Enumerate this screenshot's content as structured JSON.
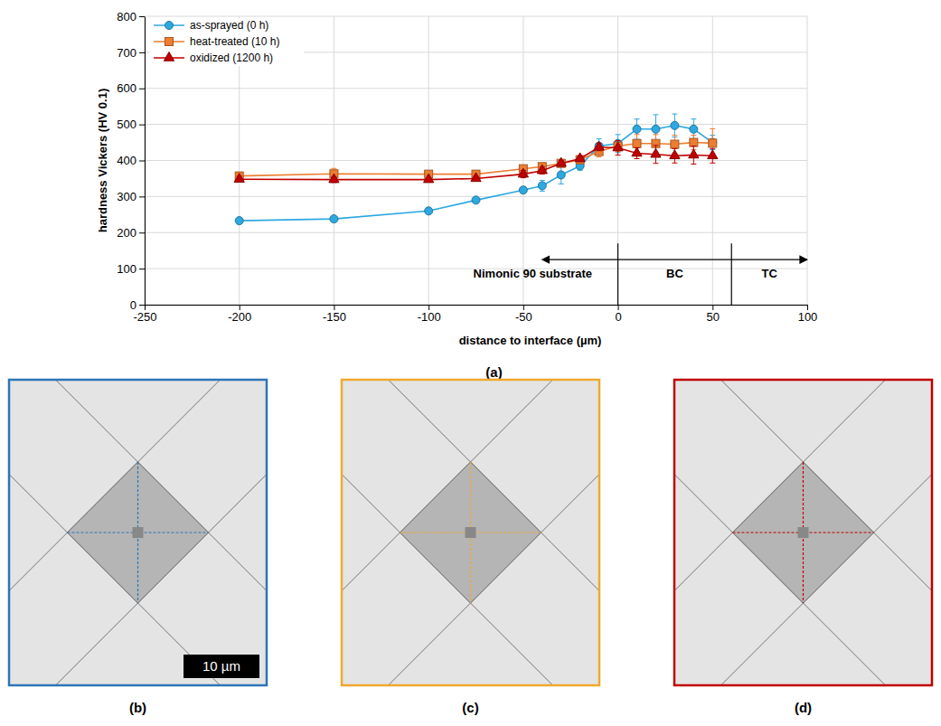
{
  "chart_data": {
    "type": "line",
    "title": "(a)",
    "x_label": "distance to interface (µm)",
    "y_label": "hardness Vickers (HV 0.1)",
    "x": [
      -200,
      -150,
      -100,
      -75,
      -50,
      -40,
      -30,
      -20,
      -10,
      0,
      10,
      20,
      30,
      40,
      50
    ],
    "series": [
      {
        "name": "as-sprayed (0 h)",
        "color": "#2ea8e0",
        "marker": "circle",
        "line_style": "solid",
        "values": [
          233,
          238,
          260,
          290,
          318,
          330,
          360,
          385,
          440,
          447,
          487,
          487,
          497,
          487,
          450
        ],
        "errors": [
          6,
          4,
          4,
          8,
          8,
          15,
          25,
          12,
          20,
          25,
          28,
          40,
          32,
          28,
          20
        ]
      },
      {
        "name": "heat-treated (10 h)",
        "color": "#ed7d31",
        "marker": "square",
        "line_style": "solid",
        "values": [
          357,
          363,
          362,
          362,
          377,
          383,
          392,
          402,
          425,
          440,
          447,
          447,
          445,
          450,
          448
        ],
        "errors": [
          10,
          15,
          8,
          8,
          8,
          8,
          8,
          8,
          15,
          15,
          25,
          25,
          25,
          20,
          40
        ]
      },
      {
        "name": "oxidized (1200 h)",
        "color": "#c00000",
        "marker": "triangle",
        "line_style": "solid",
        "values": [
          348,
          347,
          347,
          350,
          362,
          372,
          392,
          405,
          437,
          435,
          420,
          417,
          413,
          415,
          413
        ],
        "errors": [
          8,
          8,
          5,
          5,
          10,
          10,
          8,
          8,
          10,
          20,
          15,
          25,
          20,
          25,
          20
        ]
      }
    ],
    "xlim": [
      -250,
      100
    ],
    "xticks": [
      -250,
      -200,
      -150,
      -100,
      -50,
      0,
      50,
      100
    ],
    "ylim": [
      0,
      800
    ],
    "yticks": [
      0,
      100,
      200,
      300,
      400,
      500,
      600,
      700,
      800
    ],
    "grid": true,
    "legend": "upper left",
    "annotations": [
      {
        "text": "Nimonic 90 substrate",
        "x": -45,
        "y": 75
      },
      {
        "text": "BC",
        "x": 30,
        "y": 75
      },
      {
        "text": "TC",
        "x": 80,
        "y": 75
      }
    ],
    "boundaries": [
      0,
      60
    ],
    "boundary_top": 170,
    "arrow": {
      "x": [
        -40,
        100
      ],
      "y": 125
    }
  },
  "micrographs": [
    {
      "label": "(b)",
      "color": "#2e75b6",
      "scale_bar": "10 µm"
    },
    {
      "label": "(c)",
      "color": "#f0a830"
    },
    {
      "label": "(d)",
      "color": "#c00000"
    }
  ]
}
